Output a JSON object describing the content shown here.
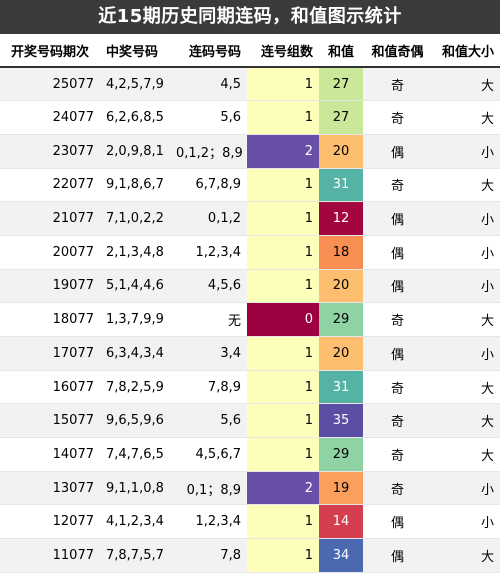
{
  "title": "近15期历史同期连码，和值图示统计",
  "headers": {
    "issue": "开奖号码期次",
    "winning": "中奖号码",
    "lianhao": "连码号码",
    "count": "连号组数",
    "sum": "和值",
    "parity": "和值奇偶",
    "size": "和值大小"
  },
  "colors": {
    "count_1": "#fefebb",
    "count_2": "#6a4fa9",
    "count_0": "#9e0142"
  },
  "rows": [
    {
      "issue": "25077",
      "winning": "4,2,5,7,9",
      "lianhao": "4,5",
      "count": "1",
      "sum": "27",
      "sum_color": "#c9e89a",
      "sum_text": "#000000",
      "count_color": "#fefebb",
      "count_text": "#000000",
      "parity": "奇",
      "size": "大"
    },
    {
      "issue": "24077",
      "winning": "6,2,6,8,5",
      "lianhao": "5,6",
      "count": "1",
      "sum": "27",
      "sum_color": "#c9e89a",
      "sum_text": "#000000",
      "count_color": "#fefebb",
      "count_text": "#000000",
      "parity": "奇",
      "size": "大"
    },
    {
      "issue": "23077",
      "winning": "2,0,9,8,1",
      "lianhao": "0,1,2；8,9",
      "count": "2",
      "sum": "20",
      "sum_color": "#fdbf6f",
      "sum_text": "#000000",
      "count_color": "#6a4fa9",
      "count_text": "#ffffff",
      "parity": "偶",
      "size": "小"
    },
    {
      "issue": "22077",
      "winning": "9,1,8,6,7",
      "lianhao": "6,7,8,9",
      "count": "1",
      "sum": "31",
      "sum_color": "#54b3a4",
      "sum_text": "#ffffff",
      "count_color": "#fefebb",
      "count_text": "#000000",
      "parity": "奇",
      "size": "大"
    },
    {
      "issue": "21077",
      "winning": "7,1,0,2,2",
      "lianhao": "0,1,2",
      "count": "1",
      "sum": "12",
      "sum_color": "#a3053f",
      "sum_text": "#ffffff",
      "count_color": "#fefebb",
      "count_text": "#000000",
      "parity": "偶",
      "size": "小"
    },
    {
      "issue": "20077",
      "winning": "2,1,3,4,8",
      "lianhao": "1,2,3,4",
      "count": "1",
      "sum": "18",
      "sum_color": "#f98e52",
      "sum_text": "#000000",
      "count_color": "#fefebb",
      "count_text": "#000000",
      "parity": "偶",
      "size": "小"
    },
    {
      "issue": "19077",
      "winning": "5,1,4,4,6",
      "lianhao": "4,5,6",
      "count": "1",
      "sum": "20",
      "sum_color": "#fdbf6f",
      "sum_text": "#000000",
      "count_color": "#fefebb",
      "count_text": "#000000",
      "parity": "偶",
      "size": "小"
    },
    {
      "issue": "18077",
      "winning": "1,3,7,9,9",
      "lianhao": "无",
      "count": "0",
      "sum": "29",
      "sum_color": "#8fd3a4",
      "sum_text": "#000000",
      "count_color": "#9e0142",
      "count_text": "#ffffff",
      "parity": "奇",
      "size": "大"
    },
    {
      "issue": "17077",
      "winning": "6,3,4,3,4",
      "lianhao": "3,4",
      "count": "1",
      "sum": "20",
      "sum_color": "#fdbf6f",
      "sum_text": "#000000",
      "count_color": "#fefebb",
      "count_text": "#000000",
      "parity": "偶",
      "size": "小"
    },
    {
      "issue": "16077",
      "winning": "7,8,2,5,9",
      "lianhao": "7,8,9",
      "count": "1",
      "sum": "31",
      "sum_color": "#54b3a4",
      "sum_text": "#ffffff",
      "count_color": "#fefebb",
      "count_text": "#000000",
      "parity": "奇",
      "size": "大"
    },
    {
      "issue": "15077",
      "winning": "9,6,5,9,6",
      "lianhao": "5,6",
      "count": "1",
      "sum": "35",
      "sum_color": "#5b4fa5",
      "sum_text": "#ffffff",
      "count_color": "#fefebb",
      "count_text": "#000000",
      "parity": "奇",
      "size": "大"
    },
    {
      "issue": "14077",
      "winning": "7,4,7,6,5",
      "lianhao": "4,5,6,7",
      "count": "1",
      "sum": "29",
      "sum_color": "#8fd3a4",
      "sum_text": "#000000",
      "count_color": "#fefebb",
      "count_text": "#000000",
      "parity": "奇",
      "size": "大"
    },
    {
      "issue": "13077",
      "winning": "9,1,1,0,8",
      "lianhao": "0,1；8,9",
      "count": "2",
      "sum": "19",
      "sum_color": "#fba05c",
      "sum_text": "#000000",
      "count_color": "#6a4fa9",
      "count_text": "#ffffff",
      "parity": "奇",
      "size": "小"
    },
    {
      "issue": "12077",
      "winning": "4,1,2,3,4",
      "lianhao": "1,2,3,4",
      "count": "1",
      "sum": "14",
      "sum_color": "#d53e4f",
      "sum_text": "#ffffff",
      "count_color": "#fefebb",
      "count_text": "#000000",
      "parity": "偶",
      "size": "小"
    },
    {
      "issue": "11077",
      "winning": "7,8,7,5,7",
      "lianhao": "7,8",
      "count": "1",
      "sum": "34",
      "sum_color": "#4a69b0",
      "sum_text": "#ffffff",
      "count_color": "#fefebb",
      "count_text": "#000000",
      "parity": "偶",
      "size": "大"
    }
  ]
}
